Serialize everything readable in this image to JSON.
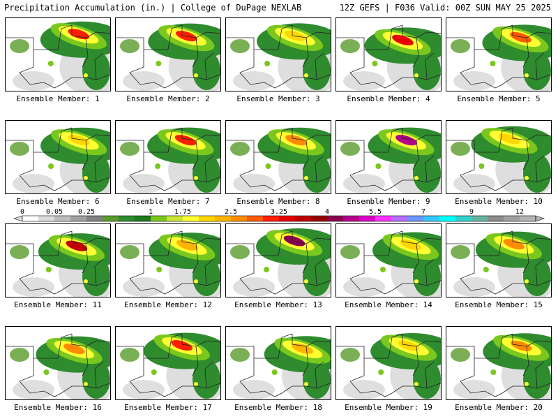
{
  "header": {
    "left": "Precipitation Accumulation (in.) | College of DuPage NEXLAB",
    "right": "12Z GEFS | F036 Valid: 00Z SUN MAY 25 2025"
  },
  "colorbar": {
    "labels": [
      "0",
      "0.05",
      "0.25",
      "1",
      "1.75",
      "2.5",
      "3.25",
      "4",
      "5.5",
      "7",
      "9",
      "12"
    ],
    "colors": [
      "#ffffff",
      "#dcdcdc",
      "#bebebe",
      "#a0a0a0",
      "#828282",
      "#5a9b2c",
      "#2e8b2e",
      "#1e7a1e",
      "#7ac71e",
      "#c8e632",
      "#ffff32",
      "#ffd700",
      "#ffb400",
      "#ff8c00",
      "#ff5a00",
      "#ff1e00",
      "#e60000",
      "#be0000",
      "#960000",
      "#8c0050",
      "#b4008c",
      "#dc00c8",
      "#ff32ff",
      "#b46eff",
      "#6e96ff",
      "#32c8ff",
      "#00ffff",
      "#32d2c8",
      "#64b4a0",
      "#8c8c8c",
      "#a0a0a0",
      "#b4b4b4"
    ]
  },
  "members": [
    {
      "label": "Ensemble Member: 1",
      "maxcolor": "#ff1e00"
    },
    {
      "label": "Ensemble Member: 2",
      "maxcolor": "#ff1e00"
    },
    {
      "label": "Ensemble Member: 3",
      "maxcolor": "#ffd700"
    },
    {
      "label": "Ensemble Member: 4",
      "maxcolor": "#e60000"
    },
    {
      "label": "Ensemble Member: 5",
      "maxcolor": "#ff5a00"
    },
    {
      "label": "Ensemble Member: 6",
      "maxcolor": "#ffd700"
    },
    {
      "label": "Ensemble Member: 7",
      "maxcolor": "#ff1e00"
    },
    {
      "label": "Ensemble Member: 8",
      "maxcolor": "#ff8c00"
    },
    {
      "label": "Ensemble Member: 9",
      "maxcolor": "#b4008c"
    },
    {
      "label": "Ensemble Member: 10",
      "maxcolor": "#ffd700"
    },
    {
      "label": "Ensemble Member: 11",
      "maxcolor": "#be0000"
    },
    {
      "label": "Ensemble Member: 12",
      "maxcolor": "#ffb400"
    },
    {
      "label": "Ensemble Member: 13",
      "maxcolor": "#8c0050"
    },
    {
      "label": "Ensemble Member: 14",
      "maxcolor": "#ffd700"
    },
    {
      "label": "Ensemble Member: 15",
      "maxcolor": "#ff8c00"
    },
    {
      "label": "Ensemble Member: 16",
      "maxcolor": "#ff8c00"
    },
    {
      "label": "Ensemble Member: 17",
      "maxcolor": "#ff1e00"
    },
    {
      "label": "Ensemble Member: 18",
      "maxcolor": "#ffb400"
    },
    {
      "label": "Ensemble Member: 19",
      "maxcolor": "#ffd700"
    },
    {
      "label": "Ensemble Member: 20",
      "maxcolor": "#ff8c00"
    }
  ]
}
